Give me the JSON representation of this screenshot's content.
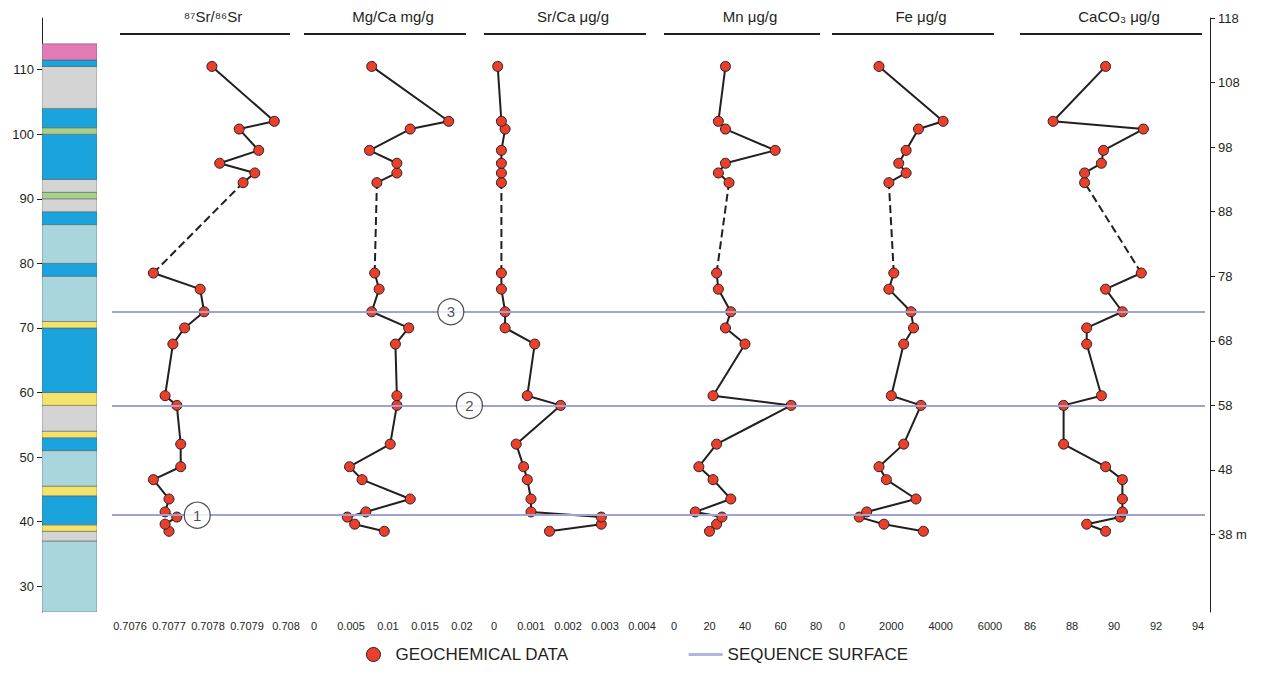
{
  "chart_data": {
    "type": "line",
    "ylim": [
      26,
      118
    ],
    "yticks": [
      30,
      40,
      50,
      60,
      70,
      80,
      90,
      100,
      110
    ],
    "y2lim": [
      26,
      118
    ],
    "y2ticks": [
      {
        "value": 38,
        "label": "38 m"
      },
      48,
      58,
      68,
      78,
      88,
      98,
      108,
      118
    ],
    "legend": "bottom",
    "grid": false,
    "lithology": {
      "type": "column",
      "layers": [
        {
          "from": 26,
          "to": 37,
          "color": "#a9d6dc"
        },
        {
          "from": 37,
          "to": 38.5,
          "color": "#d4d4d4"
        },
        {
          "from": 38.5,
          "to": 39.5,
          "color": "#f4e36a"
        },
        {
          "from": 39.5,
          "to": 44,
          "color": "#1ba3dd"
        },
        {
          "from": 44,
          "to": 45.5,
          "color": "#f4e36a"
        },
        {
          "from": 45.5,
          "to": 51,
          "color": "#a9d6dc"
        },
        {
          "from": 51,
          "to": 53,
          "color": "#1ba3dd"
        },
        {
          "from": 53,
          "to": 54,
          "color": "#f4e36a"
        },
        {
          "from": 54,
          "to": 58,
          "color": "#d4d4d4"
        },
        {
          "from": 58,
          "to": 60,
          "color": "#f4e36a"
        },
        {
          "from": 60,
          "to": 70,
          "color": "#1ba3dd"
        },
        {
          "from": 70,
          "to": 71,
          "color": "#f4e36a"
        },
        {
          "from": 71,
          "to": 78,
          "color": "#a9d6dc"
        },
        {
          "from": 78,
          "to": 80,
          "color": "#1ba3dd"
        },
        {
          "from": 80,
          "to": 86,
          "color": "#a9d6dc"
        },
        {
          "from": 86,
          "to": 88,
          "color": "#1ba3dd"
        },
        {
          "from": 88,
          "to": 90,
          "color": "#d4d4d4"
        },
        {
          "from": 90,
          "to": 91,
          "color": "#a8d08d"
        },
        {
          "from": 91,
          "to": 93,
          "color": "#d4d4d4"
        },
        {
          "from": 93,
          "to": 100,
          "color": "#1ba3dd"
        },
        {
          "from": 100,
          "to": 101,
          "color": "#a8d08d"
        },
        {
          "from": 101,
          "to": 104,
          "color": "#1ba3dd"
        },
        {
          "from": 104,
          "to": 110.5,
          "color": "#d4d4d4"
        },
        {
          "from": 110.5,
          "to": 111.5,
          "color": "#1ba3dd"
        },
        {
          "from": 111.5,
          "to": 114,
          "color": "#e27bb5"
        }
      ]
    },
    "sequence_surfaces": {
      "name": "SEQUENCE SURFACE",
      "color": "#9ea3cf",
      "values": [
        41,
        58,
        72.5
      ],
      "labels": [
        "1",
        "2",
        "3"
      ]
    },
    "panels": [
      {
        "title": "⁸⁷Sr/⁸⁶Sr",
        "xlim": [
          0.7076,
          0.708
        ],
        "xticks": [
          0.7076,
          0.7077,
          0.7078,
          0.7079,
          0.708
        ],
        "series": [
          {
            "name": "GEOCHEMICAL DATA",
            "color": "#ec3f2b",
            "marker": "circle",
            "line_style": "solid",
            "x": [
              0.7077,
              0.70769,
              0.70772,
              0.70769,
              0.7077,
              0.70766,
              0.70773,
              0.70773,
              0.70772,
              0.70769,
              0.70771,
              0.70774,
              0.70779,
              0.70778,
              0.70766,
              null,
              0.70789,
              0.70792,
              0.70783,
              0.70793,
              0.70788,
              0.70797,
              0.70781
            ],
            "y": [
              38.5,
              39.6,
              40.7,
              41.5,
              43.5,
              46.5,
              48.5,
              52,
              58,
              59.5,
              67.5,
              70,
              72.5,
              76,
              78.5,
              null,
              92.5,
              94,
              95.5,
              97.5,
              100.8,
              102,
              110.5
            ]
          },
          {
            "color": "#231f20",
            "marker": "none",
            "line_style": "dashed",
            "x": [
              0.70766,
              0.70789
            ],
            "y": [
              78.5,
              92.5
            ]
          }
        ]
      },
      {
        "title": "Mg/Ca mg/g",
        "xlim": [
          0,
          0.02
        ],
        "xticks": [
          0,
          0.005,
          0.01,
          0.015,
          0.02
        ],
        "series": [
          {
            "name": "GEOCHEMICAL DATA",
            "color": "#ec3f2b",
            "marker": "circle",
            "line_style": "solid",
            "x": [
              0.0095,
              0.0055,
              0.0045,
              0.007,
              0.013,
              0.0065,
              0.0048,
              0.0103,
              0.0112,
              0.0112,
              0.011,
              0.0128,
              0.0078,
              0.0088,
              0.0082,
              null,
              0.0085,
              0.0112,
              0.0112,
              0.0075,
              0.013,
              0.0182,
              0.0078
            ],
            "y": [
              38.5,
              39.6,
              40.7,
              41.5,
              43.5,
              46.5,
              48.5,
              52,
              58,
              59.5,
              67.5,
              70,
              72.5,
              76,
              78.5,
              null,
              92.5,
              94,
              95.5,
              97.5,
              100.8,
              102,
              110.5
            ]
          },
          {
            "color": "#231f20",
            "marker": "none",
            "line_style": "dashed",
            "x": [
              0.0082,
              0.0085
            ],
            "y": [
              78.5,
              92.5
            ]
          }
        ]
      },
      {
        "title": "Sr/Ca μg/g",
        "xlim": [
          0,
          0.004
        ],
        "xticks": [
          0,
          0.001,
          0.002,
          0.003,
          0.004
        ],
        "series": [
          {
            "name": "GEOCHEMICAL DATA",
            "color": "#ec3f2b",
            "marker": "circle",
            "line_style": "solid",
            "x": [
              0.0015,
              0.0029,
              0.0029,
              0.001,
              0.001,
              0.0009,
              0.0008,
              0.0006,
              0.0018,
              0.0009,
              0.0011,
              0.0003,
              0.0003,
              0.0002,
              0.0002,
              null,
              0.0002,
              0.0002,
              0.0002,
              0.0002,
              0.0003,
              0.0002,
              0.0001
            ],
            "y": [
              38.5,
              39.6,
              40.7,
              41.5,
              43.5,
              46.5,
              48.5,
              52,
              58,
              59.5,
              67.5,
              70,
              72.5,
              76,
              78.5,
              null,
              92.5,
              94,
              95.5,
              97.5,
              100.8,
              102,
              110.5
            ]
          },
          {
            "color": "#231f20",
            "marker": "none",
            "line_style": "dashed",
            "x": [
              0.0002,
              0.0002
            ],
            "y": [
              78.5,
              92.5
            ]
          }
        ]
      },
      {
        "title": "Mn μg/g",
        "xlim": [
          0,
          80
        ],
        "xticks": [
          0,
          20,
          40,
          60,
          80
        ],
        "series": [
          {
            "name": "GEOCHEMICAL DATA",
            "color": "#ec3f2b",
            "marker": "circle",
            "line_style": "solid",
            "x": [
              20,
              24,
              27,
              12,
              32,
              22,
              14,
              24,
              66,
              22,
              40,
              29,
              32,
              25,
              24,
              null,
              31,
              25,
              29,
              57,
              29,
              25,
              29
            ],
            "y": [
              38.5,
              39.6,
              40.7,
              41.5,
              43.5,
              46.5,
              48.5,
              52,
              58,
              59.5,
              67.5,
              70,
              72.5,
              76,
              78.5,
              null,
              92.5,
              94,
              95.5,
              97.5,
              100.8,
              102,
              110.5
            ]
          },
          {
            "color": "#231f20",
            "marker": "none",
            "line_style": "dashed",
            "x": [
              24,
              31
            ],
            "y": [
              78.5,
              92.5
            ]
          }
        ]
      },
      {
        "title": "Fe μg/g",
        "xlim": [
          0,
          6000
        ],
        "xticks": [
          0,
          2000,
          4000,
          6000
        ],
        "series": [
          {
            "name": "GEOCHEMICAL DATA",
            "color": "#ec3f2b",
            "marker": "circle",
            "line_style": "solid",
            "x": [
              3300,
              1700,
              700,
              1000,
              3000,
              1800,
              1500,
              2500,
              3200,
              2000,
              2500,
              2900,
              2800,
              1900,
              2100,
              null,
              1900,
              2600,
              2300,
              2600,
              3100,
              4100,
              1500
            ],
            "y": [
              38.5,
              39.6,
              40.7,
              41.5,
              43.5,
              46.5,
              48.5,
              52,
              58,
              59.5,
              67.5,
              70,
              72.5,
              76,
              78.5,
              null,
              92.5,
              94,
              95.5,
              97.5,
              100.8,
              102,
              110.5
            ]
          },
          {
            "color": "#231f20",
            "marker": "none",
            "line_style": "dashed",
            "x": [
              2100,
              1900
            ],
            "y": [
              78.5,
              92.5
            ]
          }
        ]
      },
      {
        "title": "CaCO₃ μg/g",
        "xlim": [
          86,
          94
        ],
        "xticks": [
          86,
          88,
          90,
          92,
          94
        ],
        "series": [
          {
            "name": "GEOCHEMICAL DATA",
            "color": "#ec3f2b",
            "marker": "circle",
            "line_style": "solid",
            "x": [
              89.6,
              88.7,
              90.3,
              90.4,
              90.4,
              90.4,
              89.6,
              87.6,
              87.6,
              89.4,
              88.7,
              88.7,
              90.4,
              89.6,
              91.3,
              null,
              88.6,
              88.6,
              89.4,
              89.5,
              91.4,
              87.1,
              89.6
            ],
            "y": [
              38.5,
              39.6,
              40.7,
              41.5,
              43.5,
              46.5,
              48.5,
              52,
              58,
              59.5,
              67.5,
              70,
              72.5,
              76,
              78.5,
              null,
              92.5,
              94,
              95.5,
              97.5,
              100.8,
              102,
              110.5
            ]
          },
          {
            "color": "#231f20",
            "marker": "none",
            "line_style": "dashed",
            "x": [
              91.3,
              88.6
            ],
            "y": [
              78.5,
              92.5
            ]
          }
        ]
      }
    ]
  }
}
